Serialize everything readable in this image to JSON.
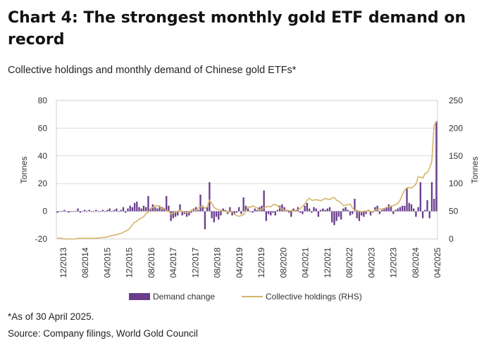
{
  "header": {
    "title": "Chart 4: The strongest monthly gold ETF demand on record",
    "subtitle": "Collective holdings and monthly demand of Chinese gold ETFs*"
  },
  "footer": {
    "note": "*As of 30 April 2025.",
    "source": "Source: Company filings, World Gold Council"
  },
  "colors": {
    "bar": "#6a3d8c",
    "line": "#d4b46a",
    "grid": "#d9d9d9"
  },
  "chart_data": {
    "type": "bar+line",
    "x_tick_labels": [
      "12/2013",
      "08/2014",
      "04/2015",
      "12/2015",
      "08/2016",
      "04/2017",
      "12/2017",
      "08/2018",
      "04/2019",
      "12/2019",
      "08/2020",
      "04/2021",
      "12/2021",
      "08/2022",
      "04/2023",
      "12/2023",
      "08/2024",
      "04/2025"
    ],
    "ylabel_left": "Tonnes",
    "ylabel_right": "Tonnes",
    "ylim_left": [
      -20,
      80
    ],
    "yticks_left": [
      -20,
      0,
      20,
      40,
      60,
      80
    ],
    "ylim_right": [
      0,
      250
    ],
    "yticks_right": [
      0,
      50,
      100,
      150,
      200,
      250
    ],
    "grid": true,
    "legend_position": "bottom",
    "series": [
      {
        "name": "Demand change",
        "type": "bar",
        "axis": "left",
        "values": [
          -1,
          0,
          0,
          1,
          0,
          -1,
          0,
          0,
          0,
          2,
          -1,
          0,
          1,
          0,
          1,
          0,
          0,
          1,
          0,
          0,
          1,
          0,
          1,
          2,
          0,
          1,
          2,
          0,
          1,
          3,
          -1,
          2,
          4,
          3,
          6,
          7,
          3,
          2,
          4,
          3,
          11,
          2,
          5,
          3,
          2,
          4,
          3,
          2,
          11,
          4,
          -7,
          -5,
          -4,
          -3,
          5,
          -3,
          -2,
          -4,
          -3,
          -1,
          2,
          3,
          1,
          12,
          3,
          -13,
          3,
          21,
          -5,
          -8,
          -4,
          -6,
          -3,
          2,
          1,
          -2,
          3,
          -3,
          -2,
          -1,
          3,
          -2,
          10,
          4,
          2,
          0,
          -1,
          2,
          1,
          3,
          4,
          15,
          -7,
          -2,
          -3,
          -1,
          -3,
          1,
          4,
          5,
          3,
          1,
          -1,
          -4,
          2,
          1,
          3,
          -1,
          -2,
          4,
          6,
          2,
          -1,
          3,
          2,
          -4,
          1,
          2,
          1,
          2,
          3,
          -8,
          -10,
          -7,
          -4,
          -6,
          2,
          3,
          1,
          -3,
          -2,
          9,
          -5,
          -7,
          -3,
          -4,
          -2,
          1,
          -3,
          -1,
          3,
          4,
          -2,
          1,
          2,
          3,
          5,
          4,
          -2,
          1,
          2,
          3,
          4,
          4,
          17,
          6,
          5,
          2,
          -4,
          3,
          21,
          -5,
          1,
          8,
          -5,
          21,
          9,
          65
        ]
      },
      {
        "name": "Collective holdings (RHS)",
        "type": "line",
        "axis": "right",
        "values": [
          2,
          1,
          1,
          0,
          0,
          0,
          0,
          0,
          0,
          1,
          1,
          1,
          1,
          1,
          1,
          1,
          1,
          1,
          2,
          2,
          3,
          3,
          4,
          5,
          6,
          7,
          8,
          9,
          10,
          12,
          14,
          16,
          20,
          26,
          30,
          32,
          36,
          38,
          40,
          46,
          48,
          55,
          57,
          60,
          60,
          58,
          54,
          56,
          50,
          50,
          45,
          47,
          48,
          50,
          52,
          50,
          48,
          47,
          49,
          52,
          53,
          52,
          56,
          58,
          60,
          55,
          58,
          70,
          64,
          57,
          54,
          53,
          52,
          50,
          50,
          48,
          49,
          50,
          45,
          42,
          41,
          42,
          44,
          50,
          58,
          57,
          60,
          58,
          56,
          52,
          54,
          56,
          58,
          59,
          58,
          62,
          62,
          60,
          56,
          54,
          52,
          52,
          51,
          51,
          50,
          52,
          53,
          55,
          59,
          63,
          70,
          74,
          70,
          70,
          71,
          70,
          69,
          71,
          73,
          72,
          71,
          74,
          75,
          70,
          68,
          65,
          60,
          61,
          62,
          63,
          56,
          52,
          52,
          50,
          49,
          50,
          50,
          51,
          50,
          49,
          52,
          53,
          54,
          54,
          55,
          57,
          58,
          59,
          60,
          62,
          64,
          70,
          80,
          88,
          92,
          93,
          92,
          95,
          99,
          112,
          112,
          110,
          118,
          120,
          128,
          140,
          205,
          212
        ]
      }
    ]
  }
}
